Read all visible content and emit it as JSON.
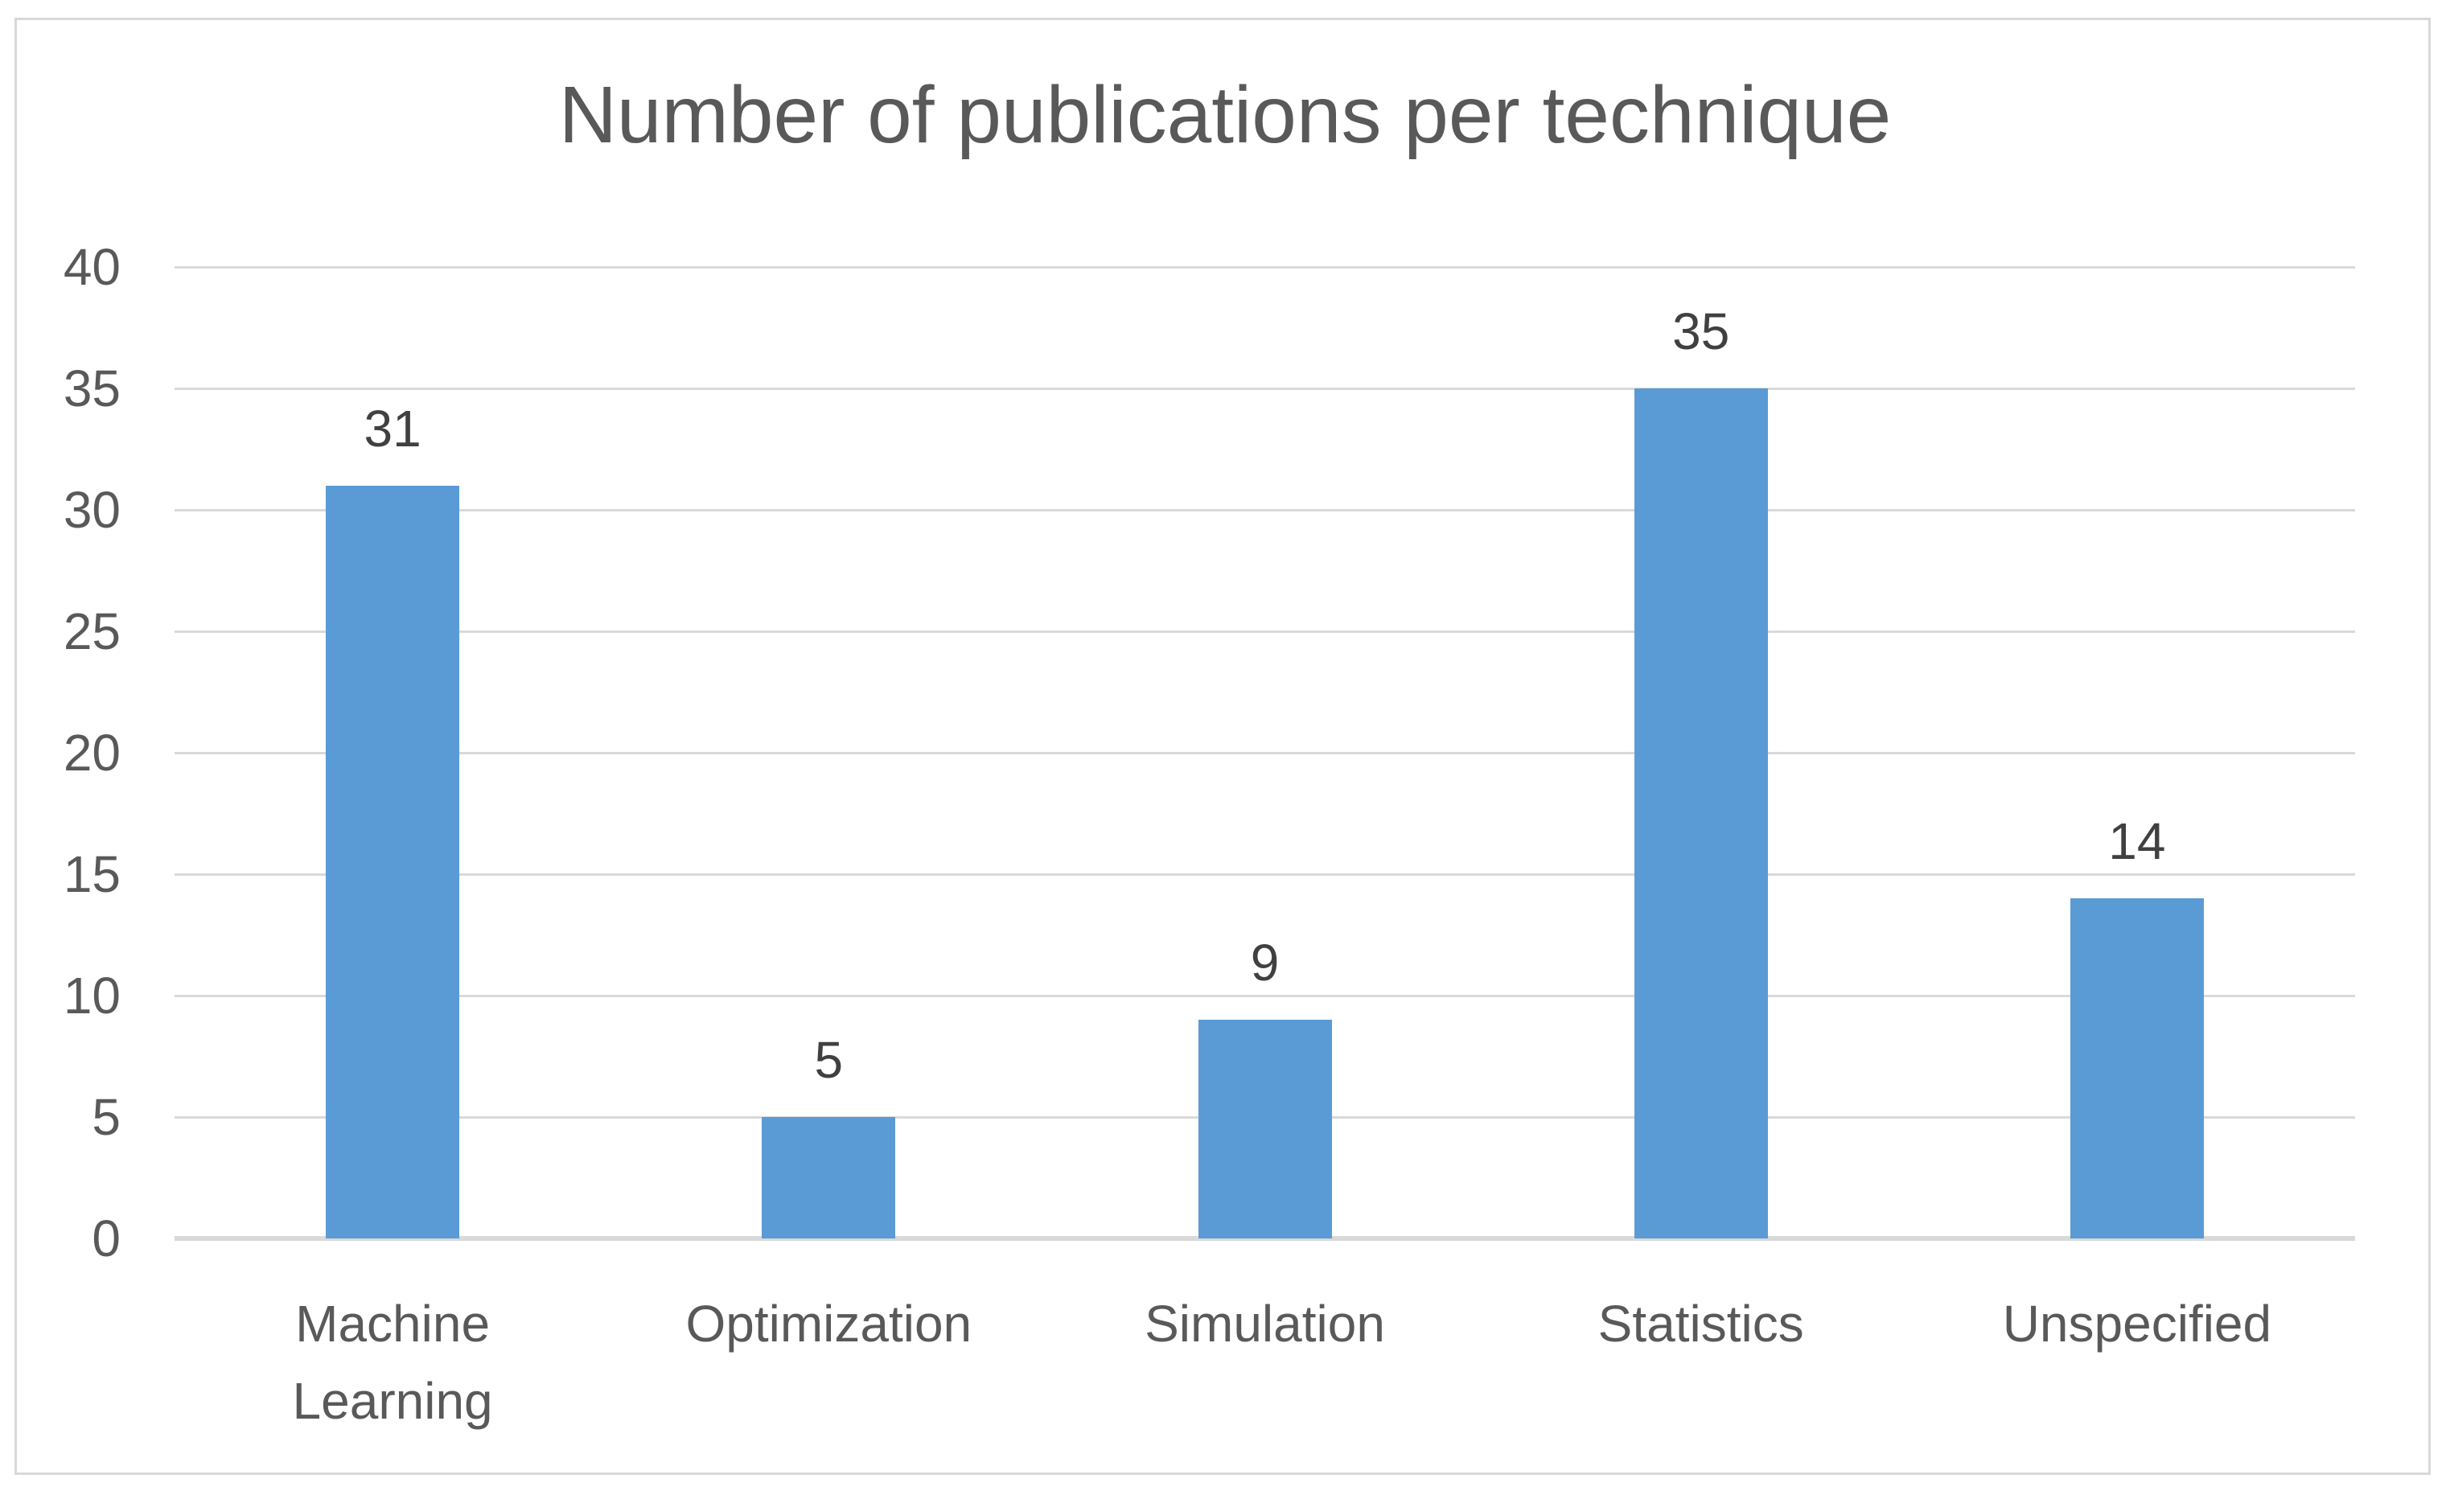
{
  "chart_data": {
    "type": "bar",
    "title": "Number of publications per technique",
    "categories": [
      "Machine Learning",
      "Optimization",
      "Simulation",
      "Statistics",
      "Unspecified"
    ],
    "values": [
      31,
      5,
      9,
      35,
      14
    ],
    "series": [
      {
        "name": "Number of publications",
        "values": [
          31,
          5,
          9,
          35,
          14
        ]
      }
    ],
    "data_labels": [
      31,
      5,
      9,
      35,
      14
    ],
    "xlabel": "",
    "ylabel": "",
    "ylim": [
      0,
      40
    ],
    "ytick_step": 5,
    "yticks": [
      0,
      5,
      10,
      15,
      20,
      25,
      30,
      35,
      40
    ],
    "grid": "horizontal",
    "legend_position": "none",
    "colors": {
      "bar": "#5B9BD5",
      "title_text": "#595959",
      "tick_text": "#595959",
      "value_label_text": "#404040",
      "gridline": "#D9D9D9",
      "axis_line": "#D9D9D9",
      "frame_border": "#D9D9D9",
      "background": "#FFFFFF"
    }
  }
}
